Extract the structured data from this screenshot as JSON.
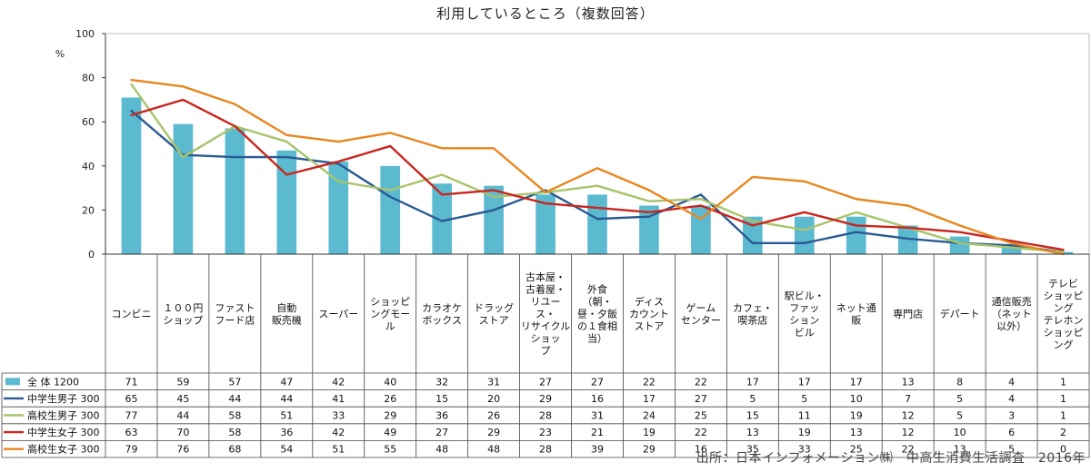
{
  "chart_data": {
    "type": "bar",
    "title": "利用しているところ（複数回答）",
    "ylabel": "%",
    "ylim": [
      0,
      100
    ],
    "yticks": [
      0,
      20,
      40,
      60,
      80,
      100
    ],
    "grid": false,
    "categories": [
      "コンビニ",
      "１００円\nショップ",
      "ファスト\nフード店",
      "自動\n販売機",
      "スーパー",
      "ショッピ\nングモー\nル",
      "カラオケ\nボックス",
      "ドラッグ\nストア",
      "古本屋・\n古着屋・\nリユー\nス・\nリサイクル\nショッ\nプ",
      "外食\n（朝・\n昼・夕飯\nの１食相\n当）",
      "ディス\nカウント\nストア",
      "ゲーム\nセンター",
      "カフェ・\n喫茶店",
      "駅ビル・\nファッ\nション\nビル",
      "ネット通\n販",
      "専門店",
      "デパート",
      "通信販売\n（ネット\n以外）",
      "テレビ\nショッピ\nング\nテレホン\nショッピ\nング"
    ],
    "series": [
      {
        "name": "全 体 1200",
        "kind": "bar",
        "color": "#5bbad0",
        "values": [
          71,
          59,
          57,
          47,
          42,
          40,
          32,
          31,
          27,
          27,
          22,
          22,
          17,
          17,
          17,
          13,
          8,
          4,
          1
        ]
      },
      {
        "name": "中学生男子 300",
        "kind": "line",
        "color": "#2a5a94",
        "values": [
          65,
          45,
          44,
          44,
          41,
          26,
          15,
          20,
          29,
          16,
          17,
          27,
          5,
          5,
          10,
          7,
          5,
          4,
          1
        ]
      },
      {
        "name": "高校生男子 300",
        "kind": "line",
        "color": "#a7c46b",
        "values": [
          77,
          44,
          58,
          51,
          33,
          29,
          36,
          26,
          28,
          31,
          24,
          25,
          15,
          11,
          19,
          12,
          5,
          3,
          1
        ]
      },
      {
        "name": "中学生女子 300",
        "kind": "line",
        "color": "#c8261e",
        "values": [
          63,
          70,
          58,
          36,
          42,
          49,
          27,
          29,
          23,
          21,
          19,
          22,
          13,
          19,
          13,
          12,
          10,
          6,
          2
        ]
      },
      {
        "name": "高校生女子 300",
        "kind": "line",
        "color": "#e8861e",
        "values": [
          79,
          76,
          68,
          54,
          51,
          55,
          48,
          48,
          28,
          39,
          29,
          16,
          35,
          33,
          25,
          22,
          13,
          5,
          0
        ]
      }
    ]
  },
  "source": "出所：日本インフォメーション㈱　中高生消費生活調査　2016年"
}
